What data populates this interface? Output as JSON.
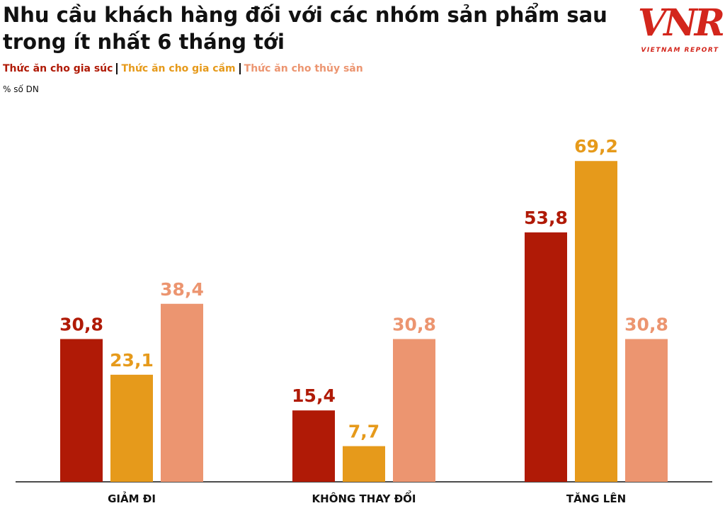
{
  "chart_data": {
    "type": "grouped-bar",
    "title": "Nhu cầu khách hàng đối với các nhóm sản phẩm sau trong ít nhất 6 tháng tới",
    "y_label": "% số DN",
    "categories": [
      "GIẢM ĐI",
      "KHÔNG THAY ĐỔI",
      "TĂNG LÊN"
    ],
    "series": [
      {
        "name": "Thức ăn cho gia súc",
        "color": "#b01a06",
        "values": [
          30.8,
          15.4,
          53.8
        ],
        "value_labels": [
          "30,8",
          "15,4",
          "53,8"
        ]
      },
      {
        "name": "Thức ăn cho gia cầm",
        "color": "#e69a1b",
        "values": [
          23.1,
          7.7,
          69.2
        ],
        "value_labels": [
          "23,1",
          "7,7",
          "69,2"
        ]
      },
      {
        "name": "Thức ăn cho thủy sản",
        "color": "#ec9570",
        "values": [
          38.4,
          30.8,
          30.8
        ],
        "value_labels": [
          "38,4",
          "30,8",
          "30,8"
        ]
      }
    ],
    "ylim": [
      0,
      70
    ]
  },
  "logo": {
    "mark": "VNR",
    "text": "VIETNAM REPORT"
  }
}
